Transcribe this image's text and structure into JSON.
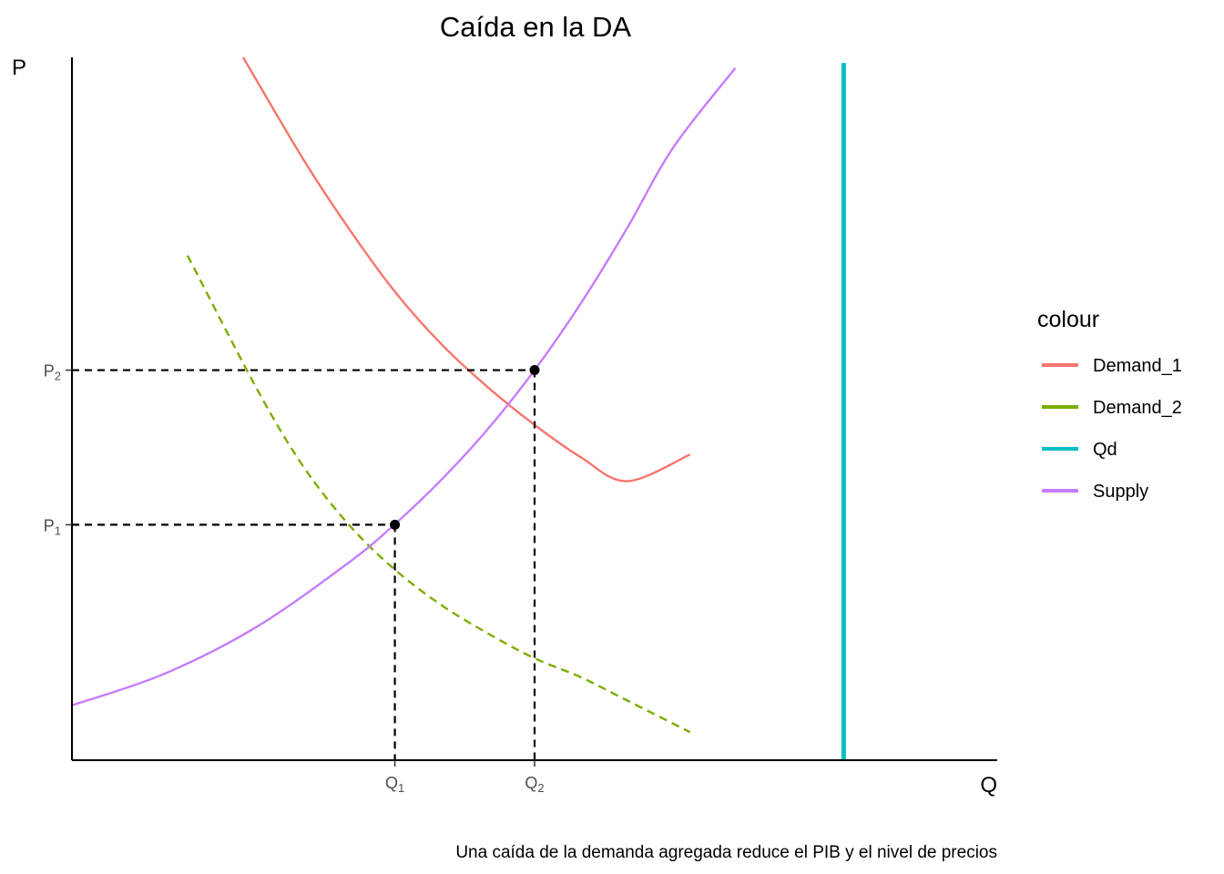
{
  "chart_data": {
    "type": "line",
    "title": "Caída en la DA",
    "xlabel": "Q",
    "ylabel": "P",
    "caption": "Una caída de la demanda agregada reduce el PIB y el nivel de precios",
    "xlim": [
      0,
      1
    ],
    "ylim": [
      0,
      1
    ],
    "grid": false,
    "legend": {
      "title": "colour",
      "placement": "right",
      "entries": [
        "Demand_1",
        "Demand_2",
        "Qd",
        "Supply"
      ]
    },
    "series": [
      {
        "name": "Demand_1",
        "color": "#F8766D",
        "dash": "solid",
        "x": [
          0.185,
          0.25,
          0.3,
          0.35,
          0.4,
          0.45,
          0.5,
          0.55,
          0.6,
          0.668
        ],
        "y": [
          1.0,
          0.855,
          0.755,
          0.665,
          0.591,
          0.53,
          0.477,
          0.431,
          0.397,
          0.435
        ]
      },
      {
        "name": "Demand_2",
        "color": "#7CAE00",
        "dash": "dashed",
        "x": [
          0.125,
          0.2,
          0.25,
          0.3,
          0.35,
          0.4,
          0.45,
          0.5,
          0.55,
          0.6,
          0.668
        ],
        "y": [
          0.718,
          0.528,
          0.418,
          0.334,
          0.27,
          0.22,
          0.18,
          0.145,
          0.118,
          0.085,
          0.04
        ]
      },
      {
        "name": "Qd",
        "color": "#00BFC4",
        "dash": "solid",
        "x": [
          0.834,
          0.834
        ],
        "y": [
          0.0,
          0.992
        ]
      },
      {
        "name": "Supply",
        "color": "#C77CFF",
        "dash": "solid",
        "x": [
          0.0,
          0.1,
          0.2,
          0.3,
          0.35,
          0.4,
          0.45,
          0.5,
          0.55,
          0.6,
          0.65,
          0.717
        ],
        "y": [
          0.078,
          0.123,
          0.19,
          0.282,
          0.337,
          0.4,
          0.472,
          0.555,
          0.65,
          0.757,
          0.872,
          0.985
        ]
      }
    ],
    "equilibria": [
      {
        "x": 0.349,
        "y": 0.335,
        "xlabel": "Q",
        "xsub": "1",
        "ylabel": "P",
        "ysub": "1"
      },
      {
        "x": 0.5,
        "y": 0.555,
        "xlabel": "Q",
        "xsub": "2",
        "ylabel": "P",
        "ysub": "2"
      }
    ]
  }
}
